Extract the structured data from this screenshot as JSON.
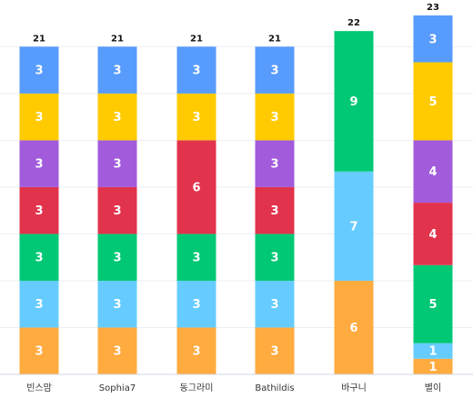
{
  "chart_data": {
    "type": "bar",
    "stacked": true,
    "categories": [
      "빈스맘",
      "Sophia7",
      "동그라미",
      "Bathildis",
      "바구니",
      "별이"
    ],
    "stacks": [
      [
        {
          "value": 3,
          "color": "#ffab40"
        },
        {
          "value": 3,
          "color": "#66ccff"
        },
        {
          "value": 3,
          "color": "#00c875"
        },
        {
          "value": 3,
          "color": "#e2334d"
        },
        {
          "value": 3,
          "color": "#a15bdb"
        },
        {
          "value": 3,
          "color": "#ffcb00"
        },
        {
          "value": 3,
          "color": "#579bfc"
        }
      ],
      [
        {
          "value": 3,
          "color": "#ffab40"
        },
        {
          "value": 3,
          "color": "#66ccff"
        },
        {
          "value": 3,
          "color": "#00c875"
        },
        {
          "value": 3,
          "color": "#e2334d"
        },
        {
          "value": 3,
          "color": "#a15bdb"
        },
        {
          "value": 3,
          "color": "#ffcb00"
        },
        {
          "value": 3,
          "color": "#579bfc"
        }
      ],
      [
        {
          "value": 3,
          "color": "#ffab40"
        },
        {
          "value": 3,
          "color": "#66ccff"
        },
        {
          "value": 3,
          "color": "#00c875"
        },
        {
          "value": 6,
          "color": "#e2334d"
        },
        {
          "value": 3,
          "color": "#ffcb00"
        },
        {
          "value": 3,
          "color": "#579bfc"
        }
      ],
      [
        {
          "value": 3,
          "color": "#ffab40"
        },
        {
          "value": 3,
          "color": "#66ccff"
        },
        {
          "value": 3,
          "color": "#00c875"
        },
        {
          "value": 3,
          "color": "#e2334d"
        },
        {
          "value": 3,
          "color": "#a15bdb"
        },
        {
          "value": 3,
          "color": "#ffcb00"
        },
        {
          "value": 3,
          "color": "#579bfc"
        }
      ],
      [
        {
          "value": 6,
          "color": "#ffab40"
        },
        {
          "value": 7,
          "color": "#66ccff"
        },
        {
          "value": 9,
          "color": "#00c875"
        }
      ],
      [
        {
          "value": 1,
          "color": "#ffab40"
        },
        {
          "value": 1,
          "color": "#66ccff"
        },
        {
          "value": 5,
          "color": "#00c875"
        },
        {
          "value": 4,
          "color": "#e2334d"
        },
        {
          "value": 4,
          "color": "#a15bdb"
        },
        {
          "value": 5,
          "color": "#ffcb00"
        },
        {
          "value": 3,
          "color": "#579bfc"
        }
      ]
    ],
    "totals": [
      21,
      21,
      21,
      21,
      22,
      23
    ],
    "ylim": [
      0,
      23
    ],
    "grid": true,
    "title": "",
    "xlabel": "",
    "ylabel": ""
  }
}
